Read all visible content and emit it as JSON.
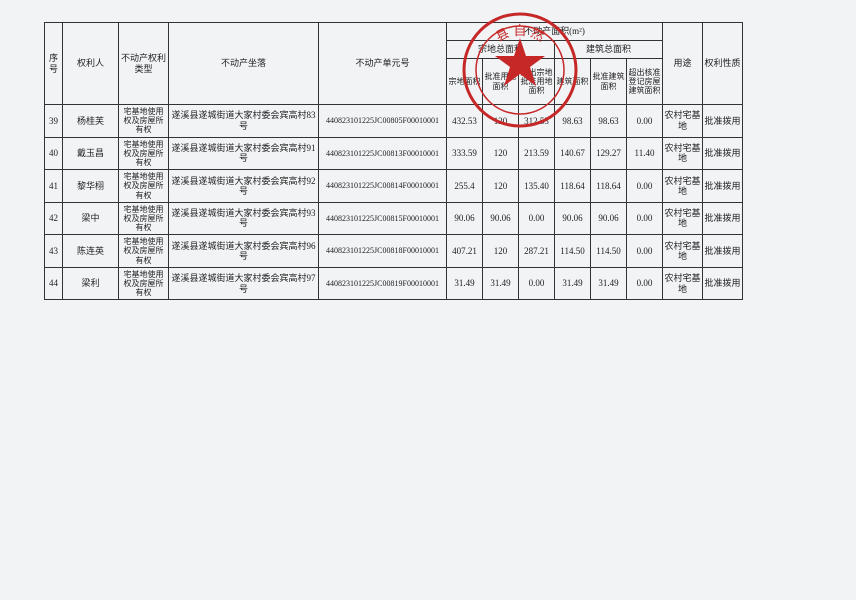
{
  "stamp": {
    "outer_color": "#c62828",
    "inner_color": "#d13a3a",
    "text": "县 自 然",
    "star_points": 5
  },
  "headers": {
    "seq": "序号",
    "owner": "权利人",
    "type": "不动产权利类型",
    "loc": "不动产坐落",
    "unit": "不动产单元号",
    "area_group": "不动产面积(m²)",
    "land_group": "宗地总面积",
    "bld_group": "建筑总面积",
    "land_total": "宗地面积",
    "approved_land": "批准用地面积",
    "excess_land": "超出宗地批准用地面积",
    "bld_total": "建筑面积",
    "approved_bld": "批准建筑面积",
    "excess_bld": "超出核准登记房屋建筑面积",
    "use": "用途",
    "nature": "权利性质"
  },
  "rows": [
    {
      "seq": "39",
      "owner": "杨桂芙",
      "type": "宅基地使用权及房屋所有权",
      "loc": "遂溪县遂城街道大家村委会宾高村83号",
      "unit": "440823101225JC00805F00010001",
      "c1": "432.53",
      "c2": "120",
      "c3": "312.53",
      "c4": "98.63",
      "c5": "98.63",
      "c6": "0.00",
      "use": "农村宅基地",
      "nat": "批准拨用"
    },
    {
      "seq": "40",
      "owner": "戴玉昌",
      "type": "宅基地使用权及房屋所有权",
      "loc": "遂溪县遂城街道大家村委会宾高村91号",
      "unit": "440823101225JC00813F00010001",
      "c1": "333.59",
      "c2": "120",
      "c3": "213.59",
      "c4": "140.67",
      "c5": "129.27",
      "c6": "11.40",
      "use": "农村宅基地",
      "nat": "批准拨用"
    },
    {
      "seq": "41",
      "owner": "黎华栩",
      "type": "宅基地使用权及房屋所有权",
      "loc": "遂溪县遂城街道大家村委会宾高村92号",
      "unit": "440823101225JC00814F00010001",
      "c1": "255.4",
      "c2": "120",
      "c3": "135.40",
      "c4": "118.64",
      "c5": "118.64",
      "c6": "0.00",
      "use": "农村宅基地",
      "nat": "批准拨用"
    },
    {
      "seq": "42",
      "owner": "梁中",
      "type": "宅基地使用权及房屋所有权",
      "loc": "遂溪县遂城街道大家村委会宾高村93号",
      "unit": "440823101225JC00815F00010001",
      "c1": "90.06",
      "c2": "90.06",
      "c3": "0.00",
      "c4": "90.06",
      "c5": "90.06",
      "c6": "0.00",
      "use": "农村宅基地",
      "nat": "批准拨用"
    },
    {
      "seq": "43",
      "owner": "陈连英",
      "type": "宅基地使用权及房屋所有权",
      "loc": "遂溪县遂城街道大家村委会宾高村96号",
      "unit": "440823101225JC00818F00010001",
      "c1": "407.21",
      "c2": "120",
      "c3": "287.21",
      "c4": "114.50",
      "c5": "114.50",
      "c6": "0.00",
      "use": "农村宅基地",
      "nat": "批准拨用"
    },
    {
      "seq": "44",
      "owner": "梁利",
      "type": "宅基地使用权及房屋所有权",
      "loc": "遂溪县遂城街道大家村委会宾高村97号",
      "unit": "440823101225JC00819F00010001",
      "c1": "31.49",
      "c2": "31.49",
      "c3": "0.00",
      "c4": "31.49",
      "c5": "31.49",
      "c6": "0.00",
      "use": "农村宅基地",
      "nat": "批准拨用"
    }
  ]
}
